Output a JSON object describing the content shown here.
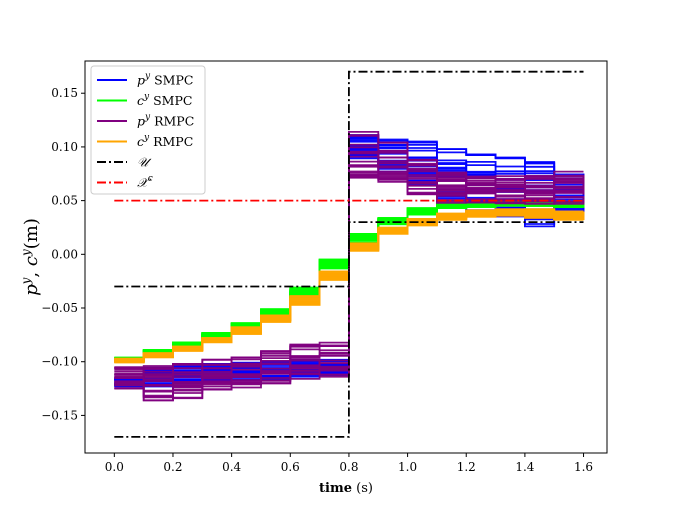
{
  "chart_data": {
    "type": "line",
    "xlabel_bold": "time",
    "xlabel_unit": " (s)",
    "ylabel": "p^y, c^y (m)",
    "xlim": [
      -0.1,
      1.68
    ],
    "ylim": [
      -0.185,
      0.18
    ],
    "xticks": [
      0.0,
      0.2,
      0.4,
      0.6,
      0.8,
      1.0,
      1.2,
      1.4,
      1.6
    ],
    "xtick_labels": [
      "0.0",
      "0.2",
      "0.4",
      "0.6",
      "0.8",
      "1.0",
      "1.2",
      "1.4",
      "1.6"
    ],
    "yticks": [
      -0.15,
      -0.1,
      -0.05,
      0.0,
      0.05,
      0.1,
      0.15
    ],
    "ytick_labels": [
      "−0.15",
      "−0.10",
      "−0.05",
      "0.00",
      "0.05",
      "0.10",
      "0.15"
    ],
    "grid": false,
    "legend_position": "upper-left",
    "legend": [
      {
        "label_main": "p",
        "label_sup": "y",
        "label_rest": " SMPC",
        "color": "#0000ff",
        "style": "solid"
      },
      {
        "label_main": "c",
        "label_sup": "y",
        "label_rest": " SMPC",
        "color": "#00ff00",
        "style": "solid"
      },
      {
        "label_main": "p",
        "label_sup": "y",
        "label_rest": " RMPC",
        "color": "#800080",
        "style": "solid"
      },
      {
        "label_main": "c",
        "label_sup": "y",
        "label_rest": " RMPC",
        "color": "#ffa500",
        "style": "solid"
      },
      {
        "label_main": "𝒰",
        "label_sup": "",
        "label_rest": "",
        "color": "#000000",
        "style": "dashdot"
      },
      {
        "label_main": "𝒳",
        "label_sup": "c",
        "label_rest": "",
        "color": "#ff0000",
        "style": "dashdot"
      }
    ],
    "step_times": [
      0.0,
      0.1,
      0.2,
      0.3,
      0.4,
      0.5,
      0.6,
      0.7,
      0.8,
      0.9,
      1.0,
      1.1,
      1.2,
      1.3,
      1.4,
      1.5,
      1.6
    ],
    "bounds": {
      "U_upper": {
        "x": [
          0.0,
          0.8,
          0.8,
          1.6
        ],
        "y": [
          -0.03,
          -0.03,
          0.17,
          0.17
        ]
      },
      "U_lower": {
        "x": [
          0.0,
          0.8,
          0.8,
          1.6
        ],
        "y": [
          -0.17,
          -0.17,
          0.03,
          0.03
        ]
      },
      "Xc": {
        "x": [
          0.0,
          1.6
        ],
        "y": [
          0.05,
          0.05
        ]
      }
    },
    "series": [
      {
        "name": "p^y SMPC",
        "color": "#0000ff",
        "center": [
          -0.119,
          -0.114,
          -0.112,
          -0.11,
          -0.109,
          -0.108,
          -0.106,
          -0.105,
          0.1,
          0.092,
          0.085,
          0.075,
          0.067,
          0.062,
          0.058,
          0.055,
          0.055
        ],
        "spread": [
          0.004,
          0.009,
          0.008,
          0.008,
          0.008,
          0.008,
          0.008,
          0.008,
          0.011,
          0.015,
          0.02,
          0.023,
          0.026,
          0.028,
          0.032,
          0.02,
          0.02
        ]
      },
      {
        "name": "c^y SMPC",
        "color": "#00ff00",
        "center": [
          -0.098,
          -0.091,
          -0.084,
          -0.075,
          -0.066,
          -0.054,
          -0.035,
          -0.009,
          0.015,
          0.031,
          0.04,
          0.045,
          0.046,
          0.047,
          0.047,
          0.046,
          0.046
        ],
        "spread": [
          0.002,
          0.002,
          0.002,
          0.002,
          0.002,
          0.003,
          0.004,
          0.004,
          0.004,
          0.003,
          0.003,
          0.002,
          0.002,
          0.002,
          0.002,
          0.002,
          0.002
        ]
      },
      {
        "name": "p^y RMPC",
        "color": "#800080",
        "center": [
          -0.115,
          -0.12,
          -0.118,
          -0.112,
          -0.11,
          -0.106,
          -0.1,
          -0.098,
          0.09,
          0.084,
          0.072,
          0.062,
          0.06,
          0.06,
          0.06,
          0.062,
          0.062
        ],
        "spread": [
          0.01,
          0.016,
          0.016,
          0.014,
          0.014,
          0.016,
          0.016,
          0.016,
          0.024,
          0.02,
          0.016,
          0.014,
          0.013,
          0.013,
          0.013,
          0.015,
          0.015
        ]
      },
      {
        "name": "c^y RMPC",
        "color": "#ffa500",
        "center": [
          -0.099,
          -0.094,
          -0.088,
          -0.08,
          -0.071,
          -0.06,
          -0.043,
          -0.02,
          0.007,
          0.022,
          0.03,
          0.035,
          0.038,
          0.039,
          0.038,
          0.036,
          0.036
        ],
        "spread": [
          0.002,
          0.002,
          0.002,
          0.002,
          0.003,
          0.003,
          0.004,
          0.004,
          0.004,
          0.003,
          0.003,
          0.003,
          0.003,
          0.003,
          0.004,
          0.004,
          0.004
        ]
      }
    ]
  }
}
